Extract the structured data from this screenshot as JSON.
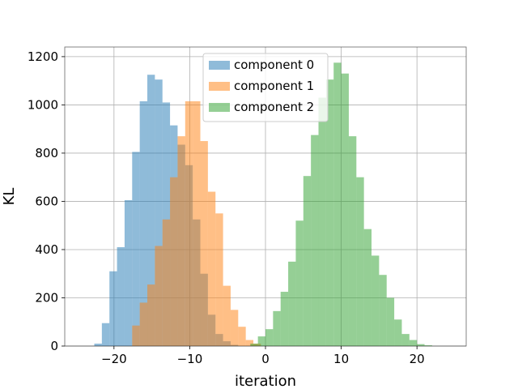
{
  "chart_data": {
    "type": "histogram",
    "xlabel": "iteration",
    "ylabel": "KL",
    "xlim": [
      -26.5,
      26.5
    ],
    "ylim": [
      0,
      1240
    ],
    "xticks": [
      -20,
      -10,
      0,
      10,
      20
    ],
    "yticks": [
      0,
      200,
      400,
      600,
      800,
      1000,
      1200
    ],
    "xtick_labels": [
      "−20",
      "−10",
      "0",
      "10",
      "20"
    ],
    "ytick_labels": [
      "0",
      "200",
      "400",
      "600",
      "800",
      "1000",
      "1200"
    ],
    "grid": true,
    "legend_position": "top-center",
    "opacity": 0.5,
    "series": [
      {
        "name": "component 0",
        "color": "#1f77b4",
        "bins": [
          [
            -22.6,
            10
          ],
          [
            -21.6,
            95
          ],
          [
            -20.6,
            310
          ],
          [
            -19.6,
            410
          ],
          [
            -18.6,
            605
          ],
          [
            -17.6,
            805
          ],
          [
            -16.6,
            1015
          ],
          [
            -15.6,
            1125
          ],
          [
            -14.6,
            1105
          ],
          [
            -13.6,
            1010
          ],
          [
            -12.6,
            915
          ],
          [
            -11.6,
            835
          ],
          [
            -10.6,
            750
          ],
          [
            -9.6,
            525
          ],
          [
            -8.6,
            300
          ],
          [
            -7.6,
            130
          ],
          [
            -6.6,
            50
          ],
          [
            -5.6,
            20
          ],
          [
            -4.6,
            5
          ]
        ],
        "bin_width": 1.0
      },
      {
        "name": "component 1",
        "color": "#ff7f0e",
        "bins": [
          [
            -17.6,
            85
          ],
          [
            -16.6,
            180
          ],
          [
            -15.6,
            255
          ],
          [
            -14.6,
            415
          ],
          [
            -13.6,
            525
          ],
          [
            -12.6,
            700
          ],
          [
            -11.6,
            870
          ],
          [
            -10.6,
            1015
          ],
          [
            -9.6,
            1015
          ],
          [
            -8.6,
            850
          ],
          [
            -7.6,
            640
          ],
          [
            -6.6,
            550
          ],
          [
            -5.6,
            250
          ],
          [
            -4.6,
            150
          ],
          [
            -3.6,
            80
          ],
          [
            -2.6,
            25
          ],
          [
            -1.6,
            10
          ]
        ],
        "bin_width": 1.0
      },
      {
        "name": "component 2",
        "color": "#2ca02c",
        "bins": [
          [
            -2.0,
            10
          ],
          [
            -1.0,
            40
          ],
          [
            0.0,
            70
          ],
          [
            1.0,
            145
          ],
          [
            2.0,
            225
          ],
          [
            3.0,
            350
          ],
          [
            4.0,
            520
          ],
          [
            5.0,
            705
          ],
          [
            6.0,
            875
          ],
          [
            7.0,
            1030
          ],
          [
            8.0,
            1105
          ],
          [
            9.0,
            1175
          ],
          [
            10.0,
            1130
          ],
          [
            11.0,
            870
          ],
          [
            12.0,
            700
          ],
          [
            13.0,
            485
          ],
          [
            14.0,
            375
          ],
          [
            15.0,
            295
          ],
          [
            16.0,
            200
          ],
          [
            17.0,
            110
          ],
          [
            18.0,
            50
          ],
          [
            19.0,
            25
          ],
          [
            20.0,
            8
          ],
          [
            21.0,
            3
          ]
        ],
        "bin_width": 1.0
      }
    ]
  }
}
